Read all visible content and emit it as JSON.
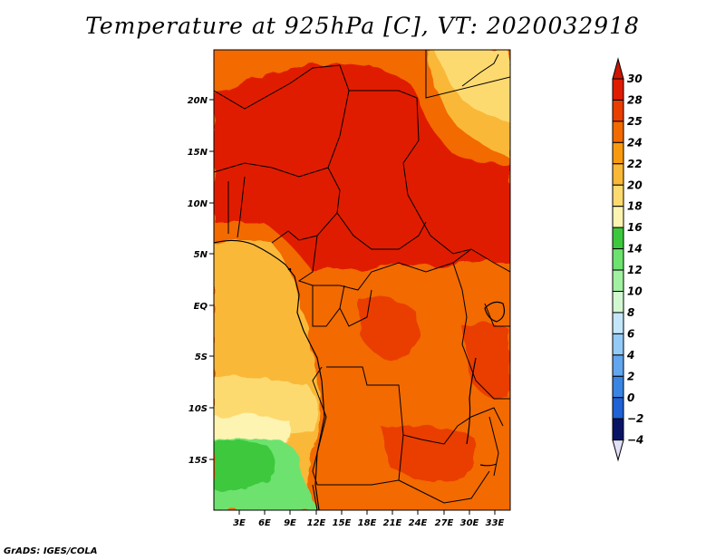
{
  "title": "Temperature at 925hPa [C], VT: 2020032918",
  "footer": "GrADS: IGES/COLA",
  "lat_labels": [
    "20N",
    "15N",
    "10N",
    "5N",
    "EQ",
    "5S",
    "10S",
    "15S"
  ],
  "lon_labels": [
    "3E",
    "6E",
    "9E",
    "12E",
    "15E",
    "18E",
    "21E",
    "24E",
    "27E",
    "30E",
    "33E"
  ],
  "legend": {
    "labels": [
      "30",
      "28",
      "25",
      "24",
      "22",
      "20",
      "18",
      "16",
      "14",
      "12",
      "10",
      "8",
      "6",
      "4",
      "2",
      "0",
      "-2",
      "-4"
    ],
    "colors": [
      "#e01c00",
      "#ea3d00",
      "#f26a00",
      "#f89a10",
      "#fab838",
      "#fdda70",
      "#fdf4b2",
      "#3cc83c",
      "#6ee26e",
      "#a2f0a2",
      "#d2f8d2",
      "#c4e6fa",
      "#94caf6",
      "#62a6f0",
      "#3a84e4",
      "#1e62d6",
      "#0c3cb8",
      "#0a1464"
    ],
    "top_arrow_color": "#cc1600",
    "bottom_arrow_color": "#e0e0f8"
  }
}
